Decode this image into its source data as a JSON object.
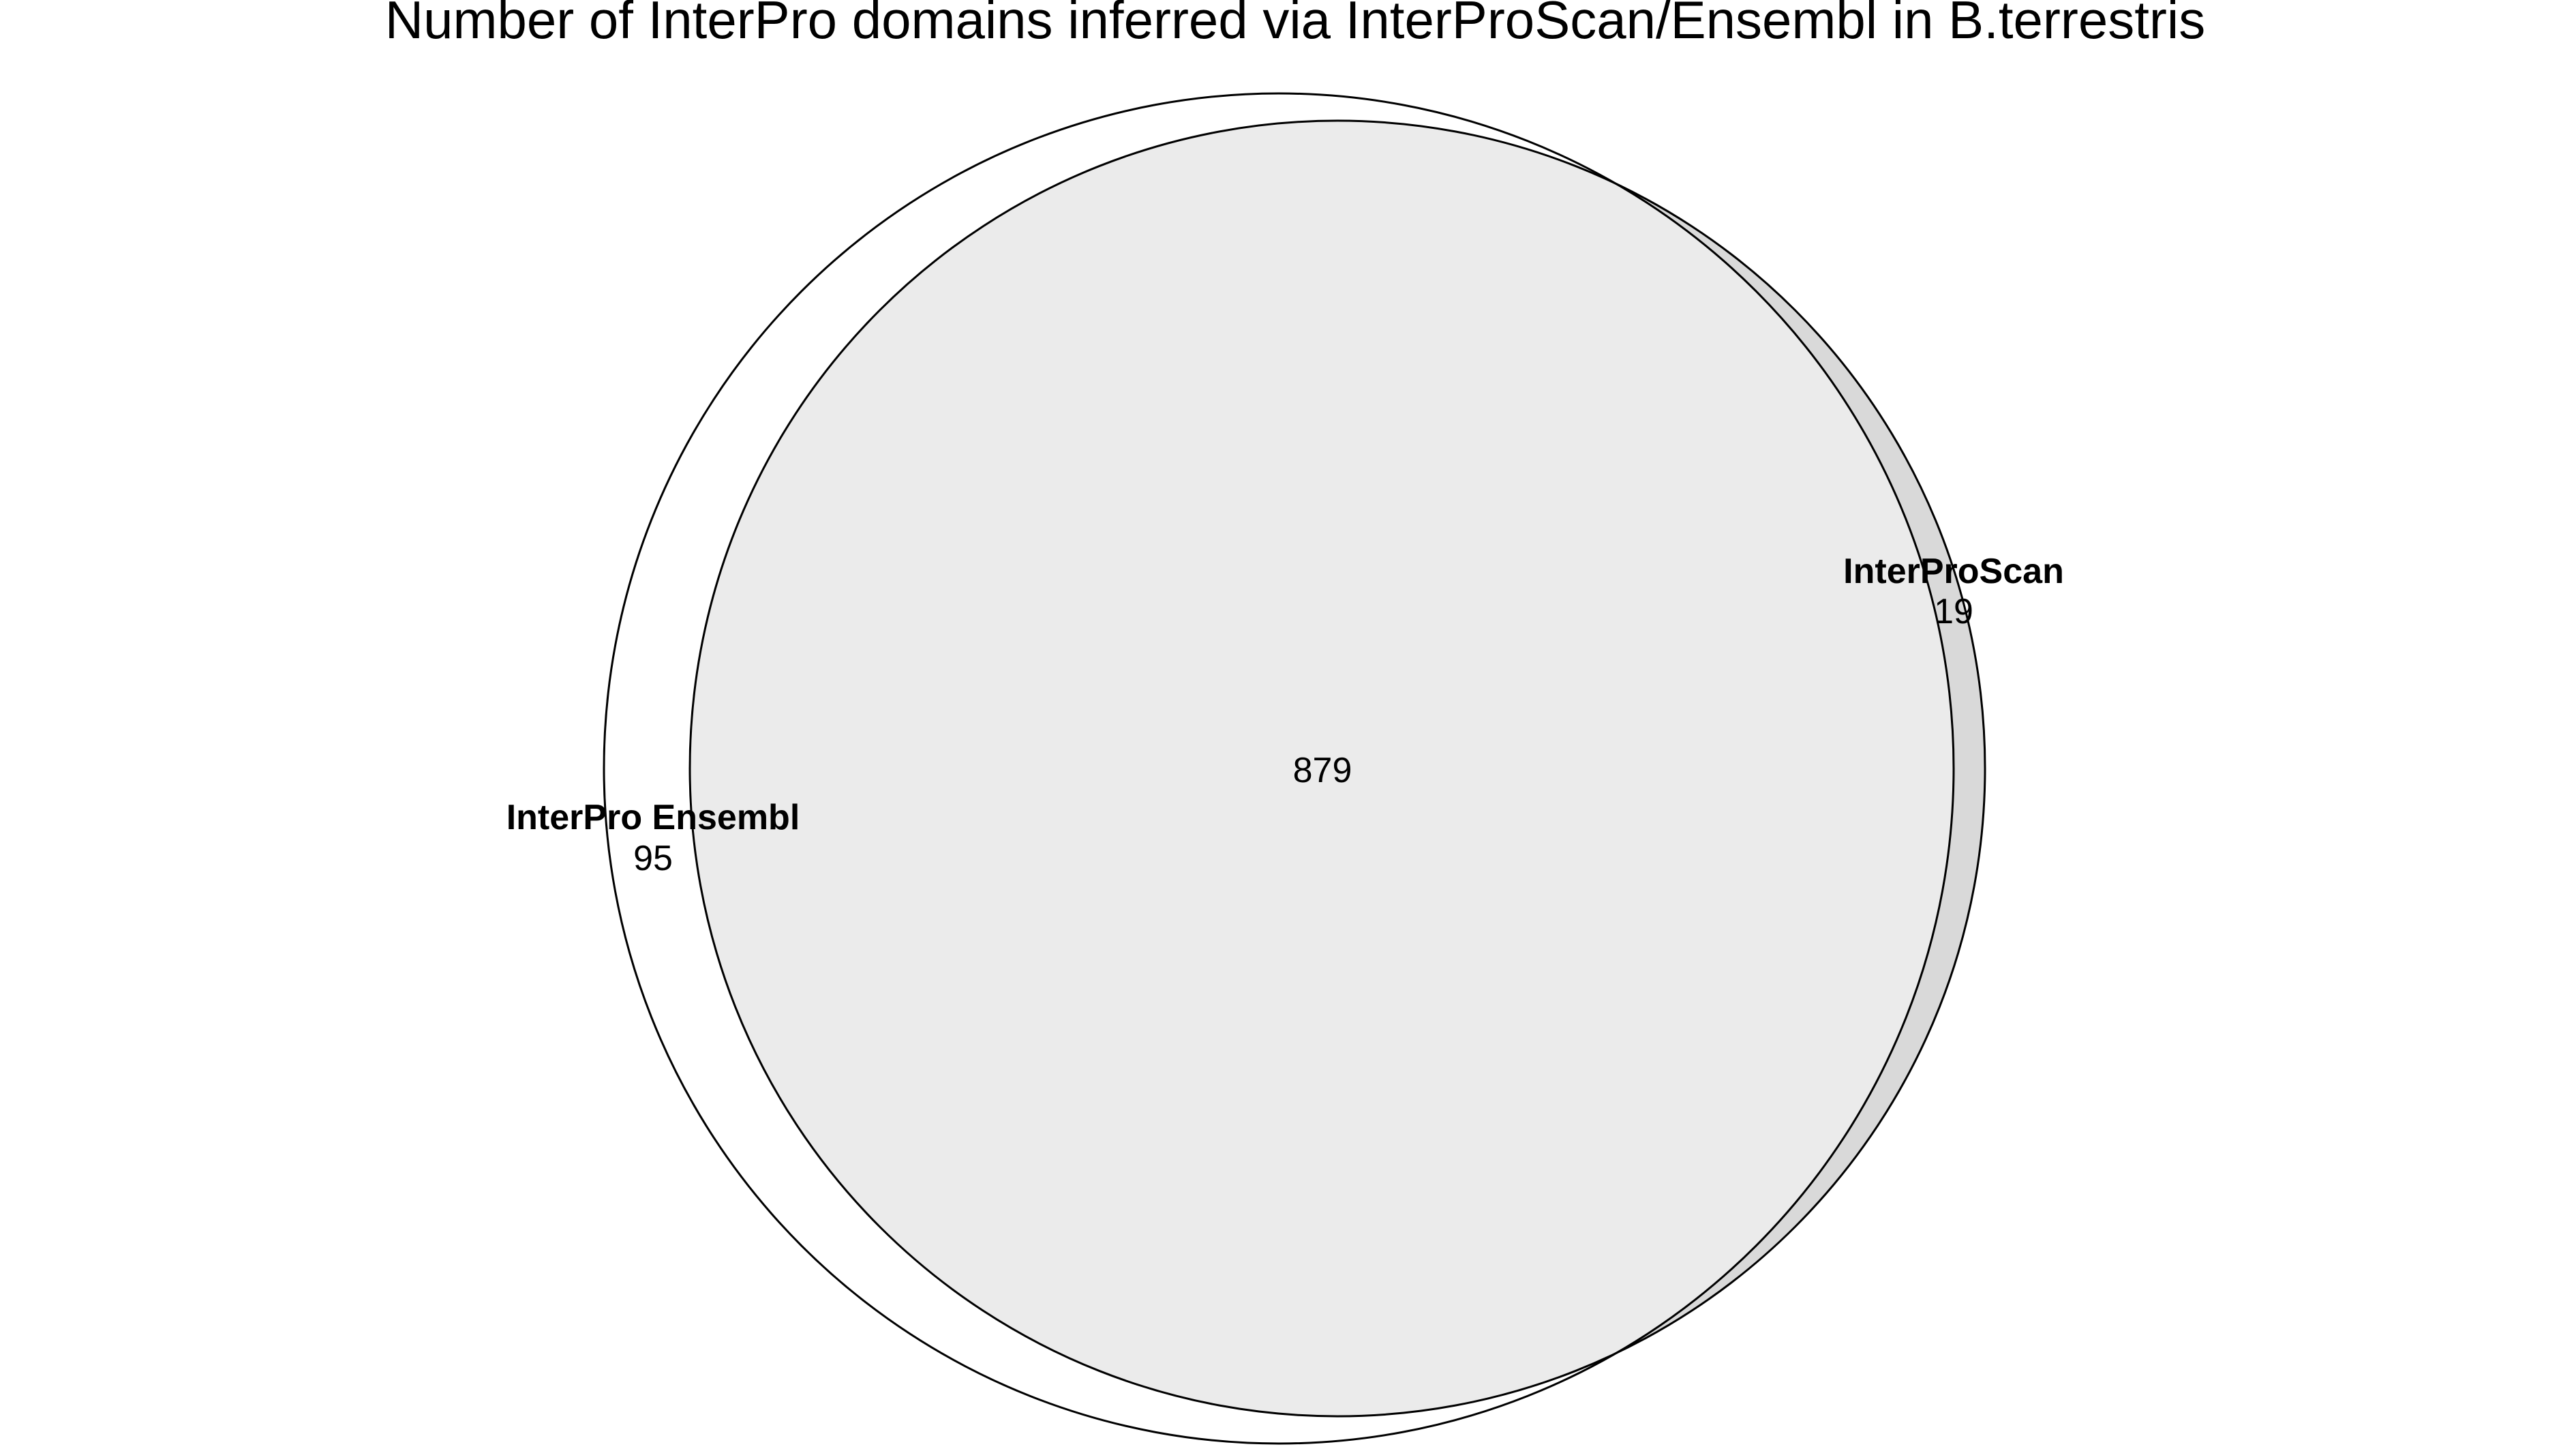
{
  "title": "Number of InterPro domains inferred via InterProScan/Ensembl in B.terrestris",
  "chart_data": {
    "type": "venn",
    "title": "Number of InterPro domains inferred via InterProScan/Ensembl in B.terrestris",
    "sets": [
      {
        "name": "InterPro Ensembl",
        "only_count": "95",
        "fill": "#ffffff"
      },
      {
        "name": "InterProScan",
        "only_count": "19",
        "fill": "#d9d9d9"
      }
    ],
    "intersection": {
      "sets": [
        "InterPro Ensembl",
        "InterProScan"
      ],
      "count": "879",
      "fill": "#ebebeb"
    },
    "stroke_color": "#000000"
  }
}
